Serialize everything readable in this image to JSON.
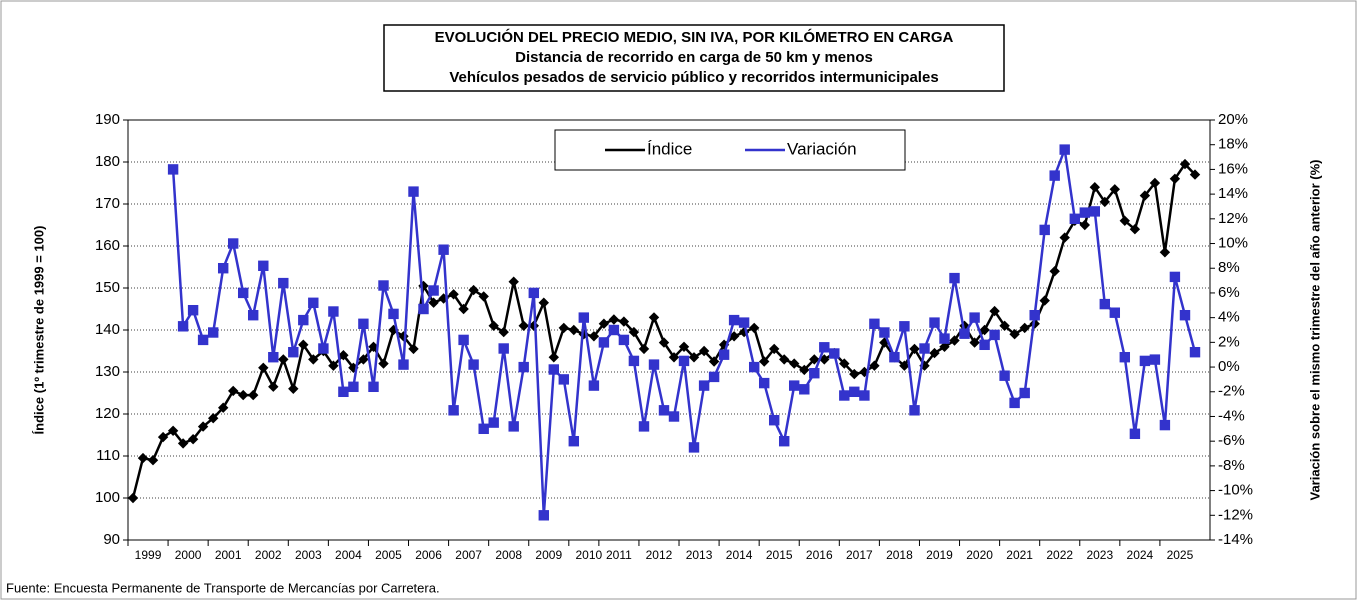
{
  "chart_data": {
    "type": "line",
    "title": "EVOLUCIÓN DEL PRECIO MEDIO, SIN IVA,  POR KILÓMETRO EN CARGA",
    "subtitle": [
      "Distancia de recorrido en carga de 50 km y menos",
      "Vehículos pesados de servicio público y recorridos intermunicipales"
    ],
    "y_label": "Índice (1º trimestre de 1999 = 100)",
    "y2_label": "Variación sobre el mismo trimestre del año anterior (%)",
    "source": "Fuente: Encuesta Permanente de Transporte de Mercancías por Carretera.",
    "categories": [
      "1999",
      null,
      null,
      null,
      "2000",
      null,
      null,
      null,
      "2001",
      null,
      null,
      null,
      "2002",
      null,
      null,
      null,
      "2003",
      null,
      null,
      null,
      "2004",
      null,
      null,
      null,
      "2005",
      null,
      null,
      null,
      "2006",
      null,
      null,
      null,
      "2007",
      null,
      null,
      null,
      "2008",
      null,
      null,
      null,
      "2009",
      null,
      null,
      null,
      "2010",
      null,
      null,
      "2011",
      null,
      null,
      null,
      "2012",
      null,
      null,
      null,
      "2013",
      null,
      null,
      null,
      "2014",
      null,
      null,
      null,
      "2015",
      null,
      null,
      null,
      "2016",
      null,
      null,
      null,
      "2017",
      null,
      null,
      null,
      "2018",
      null,
      null,
      null,
      "2019",
      null,
      null,
      null,
      "2020",
      null,
      null,
      null,
      "2021",
      null,
      null,
      null,
      "2022",
      null,
      null,
      null,
      "2023",
      null,
      null,
      null,
      "2024",
      null,
      null,
      null,
      "2025",
      null,
      null,
      null
    ],
    "series": [
      {
        "name": "Índice",
        "color": "#000000",
        "values": [
          100,
          109.5,
          109,
          114.5,
          116,
          113,
          114,
          117,
          119,
          121.5,
          125.5,
          124.5,
          124.5,
          131,
          126.5,
          133,
          126,
          136.5,
          133,
          135,
          131.5,
          134,
          131,
          133,
          136,
          132,
          140,
          138.5,
          135.5,
          150.5,
          146.5,
          147.5,
          148.5,
          145,
          149.5,
          148,
          141,
          139.5,
          151.5,
          141,
          141,
          146.5,
          133.5,
          140.5,
          140,
          139,
          138.5,
          141.5,
          142.5,
          142,
          139.5,
          135.5,
          143,
          137,
          133.5,
          136,
          133.5,
          135,
          132.5,
          136.5,
          138.5,
          139.5,
          140.5,
          132.5,
          135.5,
          133,
          132,
          130.5,
          133,
          133,
          134.5,
          132,
          129.5,
          130,
          131.5,
          137,
          133.5,
          131.5,
          135.5,
          131.5,
          134.5,
          136,
          137.5,
          141,
          137,
          140,
          144.5,
          141,
          139,
          140.5,
          141.5,
          147,
          154,
          162,
          166,
          165,
          174,
          170.5,
          173.5,
          166,
          164,
          172,
          175,
          158.5,
          176,
          179.5,
          177
        ]
      },
      {
        "name": "Variación",
        "color": "#3333cc",
        "axis": "y2",
        "values": [
          null,
          null,
          null,
          null,
          16,
          3.3,
          4.6,
          2.2,
          2.8,
          8,
          10,
          6,
          4.2,
          8.2,
          0.8,
          6.8,
          1.2,
          3.8,
          5.2,
          1.5,
          4.5,
          -2,
          -1.6,
          3.5,
          -1.6,
          6.6,
          4.3,
          0.2,
          14.2,
          4.7,
          6.2,
          9.5,
          -3.5,
          2.2,
          0.2,
          -5,
          -4.5,
          1.5,
          -4.8,
          0,
          6,
          -12,
          -0.2,
          -1,
          -6,
          4,
          -1.5,
          2,
          3,
          2.2,
          0.5,
          -4.8,
          0.2,
          -3.5,
          -4,
          0.5,
          -6.5,
          -1.5,
          -0.8,
          1,
          3.8,
          3.6,
          0,
          -1.3,
          -4.3,
          -6,
          -1.5,
          -1.8,
          -0.5,
          1.6,
          1.1,
          -2.3,
          -2,
          -2.3,
          3.5,
          2.8,
          0.8,
          3.3,
          -3.5,
          1.5,
          3.6,
          2.3,
          7.2,
          2.7,
          4,
          1.8,
          2.6,
          -0.7,
          -2.9,
          -2.1,
          4.2,
          11.1,
          15.5,
          17.6,
          12,
          12.5,
          12.6,
          5.1,
          4.4,
          0.8,
          -5.4,
          0.5,
          0.6,
          -4.7,
          7.3,
          4.2,
          1.2
        ]
      }
    ],
    "ylim": [
      90,
      190
    ],
    "yticks": [
      90,
      100,
      110,
      120,
      130,
      140,
      150,
      160,
      170,
      180,
      190
    ],
    "y2lim": [
      -14,
      20
    ],
    "y2ticks": [
      {
        "value": -14,
        "label": "-14%"
      },
      {
        "value": -12,
        "label": "-12%"
      },
      {
        "value": -10,
        "label": "-10%"
      },
      {
        "value": -8,
        "label": "-8%"
      },
      {
        "value": -6,
        "label": "-6%"
      },
      {
        "value": -4,
        "label": "-4%"
      },
      {
        "value": -2,
        "label": "-2%"
      },
      {
        "value": 0,
        "label": "0%"
      },
      {
        "value": 2,
        "label": "2%"
      },
      {
        "value": 4,
        "label": "4%"
      },
      {
        "value": 6,
        "label": "6%"
      },
      {
        "value": 8,
        "label": "8%"
      },
      {
        "value": 10,
        "label": "10%"
      },
      {
        "value": 12,
        "label": "12%"
      },
      {
        "value": 14,
        "label": "14%"
      },
      {
        "value": 16,
        "label": "16%"
      },
      {
        "value": 18,
        "label": "18%"
      },
      {
        "value": 20,
        "label": "20%"
      }
    ],
    "grid": true,
    "legend": "top"
  }
}
